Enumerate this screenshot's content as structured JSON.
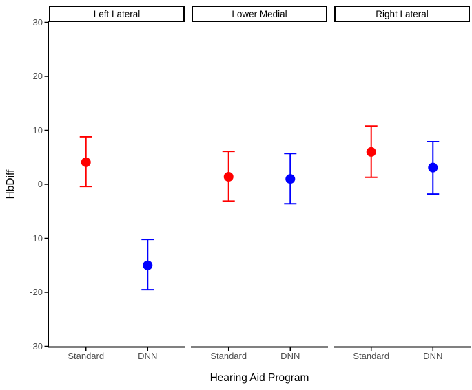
{
  "chart_data": {
    "type": "pointrange",
    "title": "",
    "xlabel": "Hearing Aid Program",
    "ylabel": "HbDiff",
    "ylim": [
      -30,
      30
    ],
    "yticks": [
      30,
      20,
      10,
      0,
      -10,
      -20,
      -30
    ],
    "categories": [
      "Standard",
      "DNN"
    ],
    "grid": false,
    "legend": "none",
    "facets": [
      {
        "label": "Left Lateral",
        "points": [
          {
            "category": "Standard",
            "mean": 4.1,
            "lower": -0.4,
            "upper": 8.8,
            "color": "#FF0000"
          },
          {
            "category": "DNN",
            "mean": -15.0,
            "lower": -19.5,
            "upper": -10.2,
            "color": "#0000FF"
          }
        ]
      },
      {
        "label": "Lower Medial",
        "points": [
          {
            "category": "Standard",
            "mean": 1.4,
            "lower": -3.1,
            "upper": 6.1,
            "color": "#FF0000"
          },
          {
            "category": "DNN",
            "mean": 1.0,
            "lower": -3.6,
            "upper": 5.7,
            "color": "#0000FF"
          }
        ]
      },
      {
        "label": "Right Lateral",
        "points": [
          {
            "category": "Standard",
            "mean": 6.0,
            "lower": 1.3,
            "upper": 10.8,
            "color": "#FF0000"
          },
          {
            "category": "DNN",
            "mean": 3.1,
            "lower": -1.8,
            "upper": 7.9,
            "color": "#0000FF"
          }
        ]
      }
    ],
    "colors": {
      "standard": "#FF0000",
      "dnn": "#0000FF",
      "axis_text": "#4D4D4D",
      "axis_line": "#000000",
      "strip_border": "#000000",
      "background": "#FFFFFF"
    }
  }
}
